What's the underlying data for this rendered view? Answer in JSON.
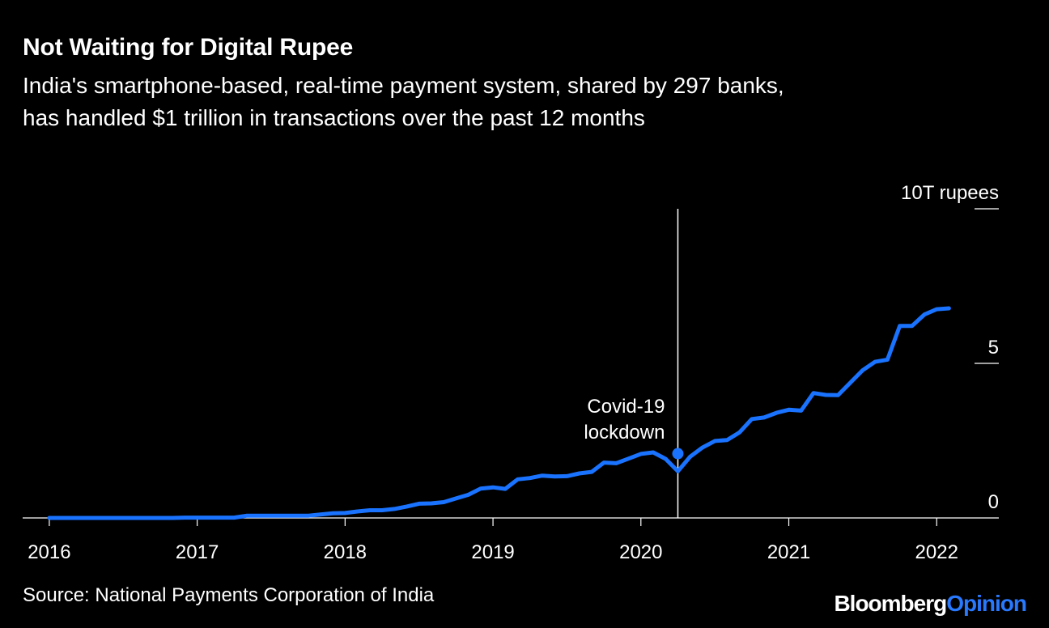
{
  "header": {
    "title": "Not Waiting for Digital Rupee",
    "subtitle_line1": "India's smartphone-based, real-time payment system, shared by 297 banks,",
    "subtitle_line2": "has handled $1 trillion in transactions over the past 12 months"
  },
  "footer": {
    "source": "Source: National Payments Corporation of India",
    "brand_part1": "Bloomberg",
    "brand_part2": "Opinion"
  },
  "colors": {
    "background": "#000000",
    "text": "#ffffff",
    "line": "#1a73ff",
    "brand_accent": "#2979ff"
  },
  "chart_data": {
    "type": "line",
    "title": "Not Waiting for Digital Rupee",
    "ylabel": "10T rupees",
    "ylim": [
      0,
      10
    ],
    "y_ticks": [
      {
        "value": 10,
        "label": "10T rupees"
      },
      {
        "value": 5,
        "label": "5"
      },
      {
        "value": 0,
        "label": "0"
      }
    ],
    "x_ticks": [
      {
        "value": 2016.0,
        "label": "2016"
      },
      {
        "value": 2017.0,
        "label": "2017"
      },
      {
        "value": 2018.0,
        "label": "2018"
      },
      {
        "value": 2019.0,
        "label": "2019"
      },
      {
        "value": 2020.0,
        "label": "2020"
      },
      {
        "value": 2021.0,
        "label": "2021"
      },
      {
        "value": 2022.0,
        "label": "2022"
      }
    ],
    "xlim": [
      2015.82,
      2022.42
    ],
    "grid": false,
    "annotation": {
      "line1": "Covid-19",
      "line2": "lockdown",
      "x": 2020.25,
      "y": 2.08
    },
    "x": [
      2016.0,
      2016.083,
      2016.167,
      2016.25,
      2016.333,
      2016.417,
      2016.5,
      2016.583,
      2016.667,
      2016.75,
      2016.833,
      2016.917,
      2017.0,
      2017.083,
      2017.167,
      2017.25,
      2017.333,
      2017.417,
      2017.5,
      2017.583,
      2017.667,
      2017.75,
      2017.833,
      2017.917,
      2018.0,
      2018.083,
      2018.167,
      2018.25,
      2018.333,
      2018.417,
      2018.5,
      2018.583,
      2018.667,
      2018.75,
      2018.833,
      2018.917,
      2019.0,
      2019.083,
      2019.167,
      2019.25,
      2019.333,
      2019.417,
      2019.5,
      2019.583,
      2019.667,
      2019.75,
      2019.833,
      2019.917,
      2020.0,
      2020.083,
      2020.167,
      2020.25,
      2020.333,
      2020.417,
      2020.5,
      2020.583,
      2020.667,
      2020.75,
      2020.833,
      2020.917,
      2021.0,
      2021.083,
      2021.167,
      2021.25,
      2021.333,
      2021.417,
      2021.5,
      2021.583,
      2021.667,
      2021.75,
      2021.833,
      2021.917,
      2022.0,
      2022.083
    ],
    "series": [
      {
        "values": [
          0.0,
          0.0,
          0.0,
          0.0,
          0.0,
          0.0,
          0.0,
          0.0,
          0.0,
          0.0,
          0.0,
          0.01,
          0.01,
          0.01,
          0.01,
          0.01,
          0.07,
          0.07,
          0.07,
          0.07,
          0.07,
          0.07,
          0.11,
          0.15,
          0.16,
          0.21,
          0.25,
          0.25,
          0.29,
          0.37,
          0.46,
          0.47,
          0.51,
          0.63,
          0.75,
          0.95,
          0.99,
          0.94,
          1.25,
          1.29,
          1.37,
          1.34,
          1.35,
          1.44,
          1.49,
          1.79,
          1.77,
          1.92,
          2.07,
          2.12,
          1.91,
          1.51,
          1.98,
          2.28,
          2.49,
          2.52,
          2.77,
          3.2,
          3.25,
          3.4,
          3.5,
          3.47,
          4.04,
          3.98,
          3.97,
          4.38,
          4.78,
          5.05,
          5.12,
          6.21,
          6.21,
          6.58,
          6.75,
          6.78
        ]
      }
    ]
  }
}
